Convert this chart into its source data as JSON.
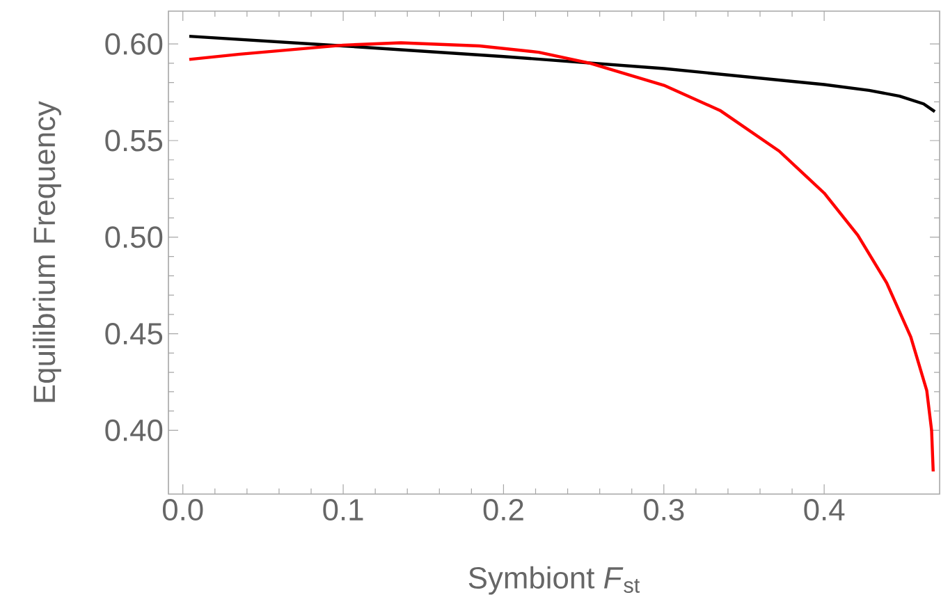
{
  "chart_data": {
    "type": "line",
    "xlabel": "Symbiont *F*$_{st}$",
    "ylabel": "Equilibrium Frequency",
    "xlim": [
      -0.009,
      0.472
    ],
    "ylim": [
      0.367,
      0.617
    ],
    "xticks": [
      {
        "value": 0,
        "label": "0.0"
      },
      0.1,
      0.2,
      0.3,
      0.4
    ],
    "yticks": [
      {
        "value": 0.4,
        "label": "0.40"
      },
      0.45,
      {
        "value": 0.5,
        "label": "0.50"
      },
      0.55,
      {
        "value": 0.6,
        "label": "0.60"
      }
    ],
    "grid": false,
    "marker": "none",
    "line_style": "solid",
    "series": [
      {
        "color": "#000000",
        "x": [
          0.004,
          0.1,
          0.2,
          0.3,
          0.4,
          0.428,
          0.447,
          0.462,
          0.469
        ],
        "values": [
          0.604,
          0.599,
          0.5935,
          0.5873,
          0.579,
          0.576,
          0.573,
          0.569,
          0.565
        ]
      },
      {
        "color": "#ff0000",
        "x": [
          0.004,
          0.0355,
          0.1,
          0.136,
          0.185,
          0.222,
          0.254,
          0.3,
          0.335,
          0.372,
          0.4,
          0.421,
          0.439,
          0.454,
          0.464,
          0.467,
          0.468
        ],
        "values": [
          0.592,
          0.5947,
          0.5994,
          0.6006,
          0.599,
          0.5957,
          0.59,
          0.5786,
          0.5656,
          0.5445,
          0.5228,
          0.501,
          0.4763,
          0.4484,
          0.4205,
          0.4,
          0.3787
        ]
      }
    ]
  }
}
